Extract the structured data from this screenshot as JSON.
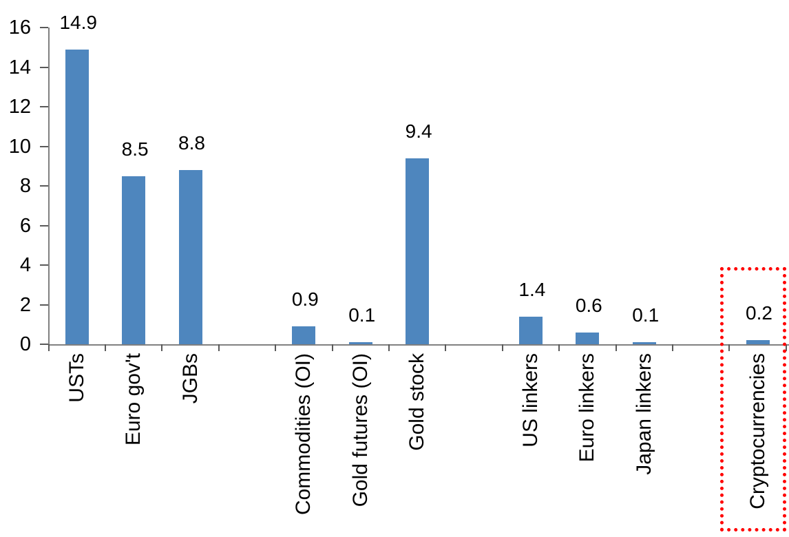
{
  "chart_data": {
    "type": "bar",
    "title": "",
    "xlabel": "",
    "ylabel": "",
    "categories": [
      "USTs",
      "Euro gov't",
      "JGBs",
      "Commodities (OI)",
      "Gold futures (OI)",
      "Gold stock",
      "US linkers",
      "Euro linkers",
      "Japan linkers",
      "Cryptocurrencies"
    ],
    "values": [
      14.9,
      8.5,
      8.8,
      0.9,
      0.1,
      9.4,
      1.4,
      0.6,
      0.1,
      0.2
    ],
    "data_labels": [
      "14.9",
      "8.5",
      "8.8",
      "0.9",
      "0.1",
      "9.4",
      "1.4",
      "0.6",
      "0.1",
      "0.2"
    ],
    "slots": [
      0,
      1,
      2,
      4,
      5,
      6,
      8,
      9,
      10,
      12
    ],
    "total_slots": 13,
    "groups": [
      [
        "USTs",
        "Euro gov't",
        "JGBs"
      ],
      [
        "Commodities (OI)",
        "Gold futures (OI)",
        "Gold stock"
      ],
      [
        "US linkers",
        "Euro linkers",
        "Japan linkers"
      ],
      [
        "Cryptocurrencies"
      ]
    ],
    "ylim": [
      0,
      16
    ],
    "yticks": [
      "0",
      "2",
      "4",
      "6",
      "8",
      "10",
      "12",
      "14",
      "16"
    ],
    "grid": "off",
    "legend": "none",
    "bar_color": "#4e86be",
    "axis_color": "#808080",
    "label_color": "#000000",
    "highlight": {
      "category": "Cryptocurrencies",
      "style": "red-dotted-box",
      "color": "#ff0000"
    }
  }
}
